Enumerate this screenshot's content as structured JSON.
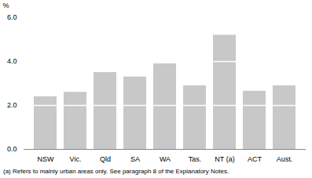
{
  "chart_data": {
    "type": "bar",
    "categories": [
      "NSW",
      "Vic.",
      "Qld",
      "SA",
      "WA",
      "Tas.",
      "NT (a)",
      "ACT",
      "Aust."
    ],
    "values": [
      2.4,
      2.6,
      3.5,
      3.3,
      3.9,
      2.9,
      5.2,
      2.65,
      2.9
    ],
    "color": "#c8c8c8",
    "lines": [
      [
        2.0
      ],
      [
        2.0
      ],
      [
        2.0
      ],
      [
        2.0
      ],
      [
        2.0
      ],
      [
        2.0
      ],
      [
        2.0,
        4.0
      ],
      [
        2.0
      ],
      [
        2.0
      ]
    ],
    "ylabel": "%",
    "ylim": [
      0,
      6
    ],
    "yticks": [
      0,
      2,
      4,
      6
    ],
    "grid": false,
    "footnote": "(a) Refers to mainly urban areas only.  See paragraph 8 of the Explanatory Notes."
  }
}
